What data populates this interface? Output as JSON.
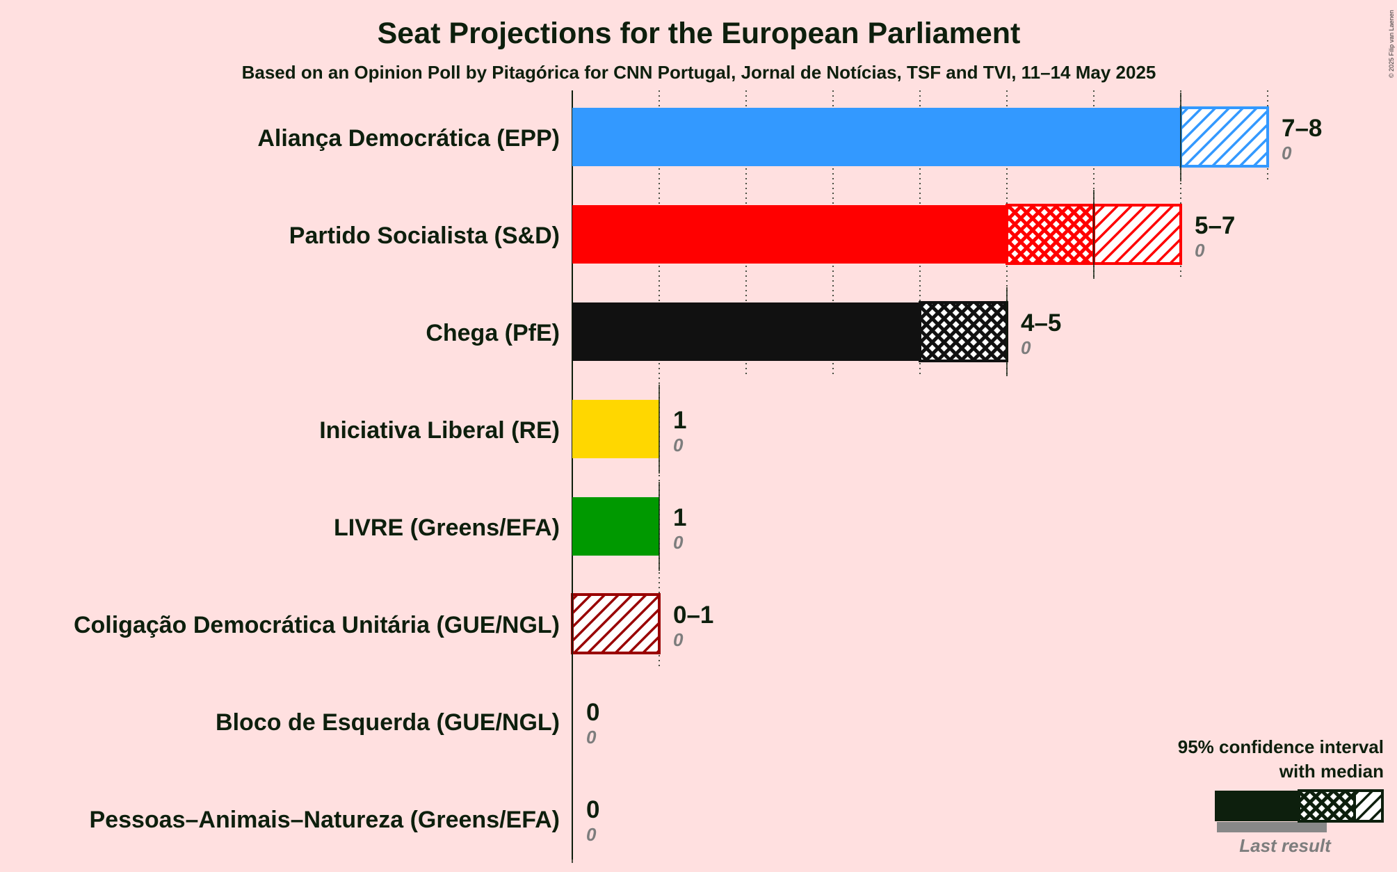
{
  "chart_data": {
    "type": "bar",
    "title": "Seat Projections for the European Parliament",
    "subtitle": "Based on an Opinion Poll by Pitagórica for CNN Portugal, Jornal de Notícias, TSF and TVI, 11–14 May 2025",
    "copyright": "© 2025 Filip van Laenen",
    "xlim": [
      0,
      8
    ],
    "grid": "dotted vertical lines at each seat",
    "parties": [
      {
        "name": "Aliança Democrática (EPP)",
        "low": 7,
        "median": 7,
        "high": 8,
        "range_label": "7–8",
        "last_result": 0,
        "last_label": "0",
        "color": "#3399ff"
      },
      {
        "name": "Partido Socialista (S&D)",
        "low": 5,
        "median": 6,
        "high": 7,
        "range_label": "5–7",
        "last_result": 0,
        "last_label": "0",
        "color": "#ff0000"
      },
      {
        "name": "Chega (PfE)",
        "low": 4,
        "median": 5,
        "high": 5,
        "range_label": "4–5",
        "last_result": 0,
        "last_label": "0",
        "color": "#111111"
      },
      {
        "name": "Iniciativa Liberal (RE)",
        "low": 1,
        "median": 1,
        "high": 1,
        "range_label": "1",
        "last_result": 0,
        "last_label": "0",
        "color": "#ffd700"
      },
      {
        "name": "LIVRE (Greens/EFA)",
        "low": 1,
        "median": 1,
        "high": 1,
        "range_label": "1",
        "last_result": 0,
        "last_label": "0",
        "color": "#009900"
      },
      {
        "name": "Coligação Democrática Unitária (GUE/NGL)",
        "low": 0,
        "median": 0,
        "high": 1,
        "range_label": "0–1",
        "last_result": 0,
        "last_label": "0",
        "color": "#990000"
      },
      {
        "name": "Bloco de Esquerda (GUE/NGL)",
        "low": 0,
        "median": 0,
        "high": 0,
        "range_label": "0",
        "last_result": 0,
        "last_label": "0",
        "color": "#8b0000"
      },
      {
        "name": "Pessoas–Animais–Natureza (Greens/EFA)",
        "low": 0,
        "median": 0,
        "high": 0,
        "range_label": "0",
        "last_result": 0,
        "last_label": "0",
        "color": "#006600"
      }
    ],
    "legend": {
      "line1": "95% confidence interval",
      "line2": "with median",
      "last_result": "Last result",
      "placement": "bottom-right"
    }
  }
}
